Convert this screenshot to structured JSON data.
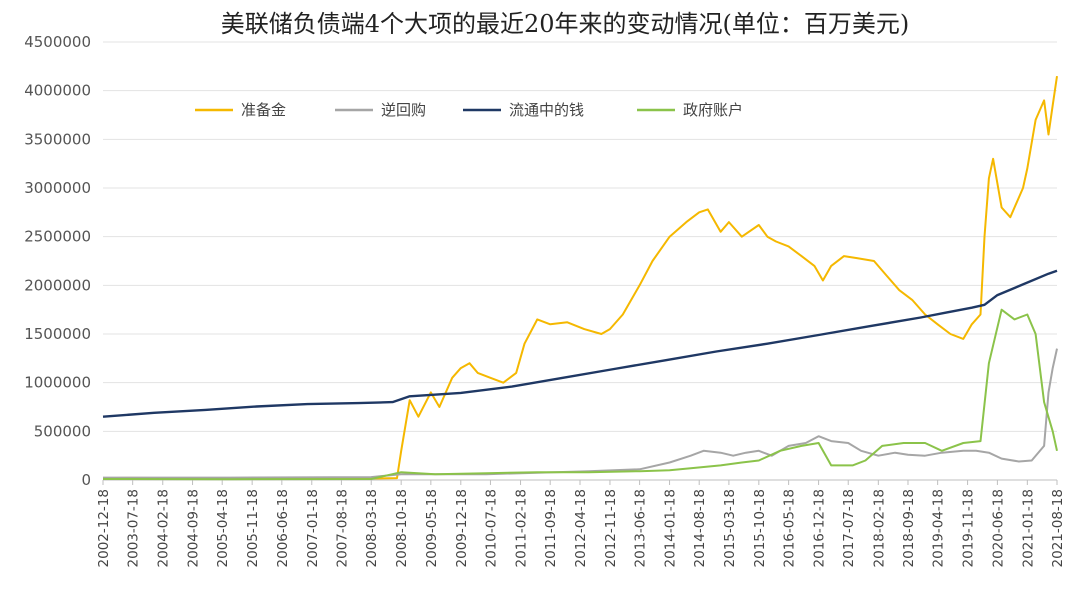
{
  "chart_data": {
    "type": "line",
    "title": "美联储负债端4个大项的最近20年来的变动情况(单位：百万美元)",
    "xlabel": "",
    "ylabel": "",
    "ylim": [
      0,
      4500000
    ],
    "yticks": [
      0,
      500000,
      1000000,
      1500000,
      2000000,
      2500000,
      3000000,
      3500000,
      4000000,
      4500000
    ],
    "ytick_labels": [
      "0",
      "500000",
      "1000000",
      "1500000",
      "2000000",
      "2500000",
      "3000000",
      "3500000",
      "4000000",
      "4500000"
    ],
    "x_start": "2002-12-18",
    "x_end": "2021-08-18",
    "xtick_labels": [
      "2002-12-18",
      "2003-07-18",
      "2004-02-18",
      "2004-09-18",
      "2005-04-18",
      "2005-11-18",
      "2006-06-18",
      "2007-01-18",
      "2007-08-18",
      "2008-03-18",
      "2008-10-18",
      "2009-05-18",
      "2009-12-18",
      "2010-07-18",
      "2011-02-18",
      "2011-09-18",
      "2012-04-18",
      "2012-11-18",
      "2013-06-18",
      "2014-01-18",
      "2014-08-18",
      "2015-03-18",
      "2015-10-18",
      "2016-05-18",
      "2016-12-18",
      "2017-07-18",
      "2018-02-18",
      "2018-09-18",
      "2019-04-18",
      "2019-11-18",
      "2020-06-18",
      "2021-01-18",
      "2021-08-18"
    ],
    "grid": true,
    "legend_position": "top",
    "series": [
      {
        "name": "准备金",
        "color": "#F5B800",
        "points": [
          [
            "2002-12-18",
            20000
          ],
          [
            "2003-06-18",
            22000
          ],
          [
            "2004-06-18",
            20000
          ],
          [
            "2005-06-18",
            18000
          ],
          [
            "2006-06-18",
            15000
          ],
          [
            "2007-06-18",
            15000
          ],
          [
            "2008-03-18",
            15000
          ],
          [
            "2008-09-18",
            20000
          ],
          [
            "2008-10-18",
            300000
          ],
          [
            "2008-12-18",
            820000
          ],
          [
            "2009-02-18",
            650000
          ],
          [
            "2009-05-18",
            900000
          ],
          [
            "2009-07-18",
            750000
          ],
          [
            "2009-10-18",
            1050000
          ],
          [
            "2009-12-18",
            1150000
          ],
          [
            "2010-02-18",
            1200000
          ],
          [
            "2010-04-18",
            1100000
          ],
          [
            "2010-07-18",
            1050000
          ],
          [
            "2010-10-18",
            1000000
          ],
          [
            "2011-01-18",
            1100000
          ],
          [
            "2011-03-18",
            1400000
          ],
          [
            "2011-06-18",
            1650000
          ],
          [
            "2011-09-18",
            1600000
          ],
          [
            "2012-01-18",
            1620000
          ],
          [
            "2012-05-18",
            1550000
          ],
          [
            "2012-09-18",
            1500000
          ],
          [
            "2012-11-18",
            1550000
          ],
          [
            "2013-02-18",
            1700000
          ],
          [
            "2013-06-18",
            2000000
          ],
          [
            "2013-09-18",
            2250000
          ],
          [
            "2014-01-18",
            2500000
          ],
          [
            "2014-05-18",
            2650000
          ],
          [
            "2014-08-18",
            2750000
          ],
          [
            "2014-10-18",
            2780000
          ],
          [
            "2015-01-18",
            2550000
          ],
          [
            "2015-03-18",
            2650000
          ],
          [
            "2015-06-18",
            2500000
          ],
          [
            "2015-10-18",
            2620000
          ],
          [
            "2015-12-18",
            2500000
          ],
          [
            "2016-02-18",
            2450000
          ],
          [
            "2016-05-18",
            2400000
          ],
          [
            "2016-08-18",
            2300000
          ],
          [
            "2016-11-18",
            2200000
          ],
          [
            "2017-01-18",
            2050000
          ],
          [
            "2017-03-18",
            2200000
          ],
          [
            "2017-06-18",
            2300000
          ],
          [
            "2017-09-18",
            2280000
          ],
          [
            "2018-01-18",
            2250000
          ],
          [
            "2018-04-18",
            2100000
          ],
          [
            "2018-07-18",
            1950000
          ],
          [
            "2018-10-18",
            1850000
          ],
          [
            "2019-01-18",
            1700000
          ],
          [
            "2019-04-18",
            1600000
          ],
          [
            "2019-07-18",
            1500000
          ],
          [
            "2019-10-18",
            1450000
          ],
          [
            "2019-12-18",
            1600000
          ],
          [
            "2020-02-18",
            1700000
          ],
          [
            "2020-03-18",
            2500000
          ],
          [
            "2020-04-18",
            3100000
          ],
          [
            "2020-05-18",
            3300000
          ],
          [
            "2020-07-18",
            2800000
          ],
          [
            "2020-09-18",
            2700000
          ],
          [
            "2020-12-18",
            3000000
          ],
          [
            "2021-01-18",
            3200000
          ],
          [
            "2021-03-18",
            3700000
          ],
          [
            "2021-05-18",
            3900000
          ],
          [
            "2021-06-18",
            3550000
          ],
          [
            "2021-07-18",
            3850000
          ],
          [
            "2021-08-18",
            4150000
          ]
        ]
      },
      {
        "name": "逆回购",
        "color": "#A6A6A6",
        "points": [
          [
            "2002-12-18",
            25000
          ],
          [
            "2005-06-18",
            25000
          ],
          [
            "2008-03-18",
            30000
          ],
          [
            "2008-10-18",
            60000
          ],
          [
            "2010-06-18",
            60000
          ],
          [
            "2012-06-18",
            90000
          ],
          [
            "2013-06-18",
            110000
          ],
          [
            "2014-01-18",
            180000
          ],
          [
            "2014-06-18",
            250000
          ],
          [
            "2014-09-18",
            300000
          ],
          [
            "2015-01-18",
            280000
          ],
          [
            "2015-04-18",
            250000
          ],
          [
            "2015-07-18",
            280000
          ],
          [
            "2015-10-18",
            300000
          ],
          [
            "2016-01-18",
            250000
          ],
          [
            "2016-05-18",
            350000
          ],
          [
            "2016-09-18",
            380000
          ],
          [
            "2016-12-18",
            450000
          ],
          [
            "2017-03-18",
            400000
          ],
          [
            "2017-07-18",
            380000
          ],
          [
            "2017-10-18",
            300000
          ],
          [
            "2018-02-18",
            250000
          ],
          [
            "2018-06-18",
            280000
          ],
          [
            "2018-09-18",
            260000
          ],
          [
            "2019-01-18",
            250000
          ],
          [
            "2019-05-18",
            280000
          ],
          [
            "2019-10-18",
            300000
          ],
          [
            "2020-01-18",
            300000
          ],
          [
            "2020-04-18",
            280000
          ],
          [
            "2020-07-18",
            220000
          ],
          [
            "2020-11-18",
            190000
          ],
          [
            "2021-02-18",
            200000
          ],
          [
            "2021-05-18",
            350000
          ],
          [
            "2021-06-18",
            900000
          ],
          [
            "2021-07-18",
            1150000
          ],
          [
            "2021-08-18",
            1350000
          ]
        ]
      },
      {
        "name": "流通中的钱",
        "color": "#1F3864",
        "points": [
          [
            "2002-12-18",
            650000
          ],
          [
            "2003-12-18",
            690000
          ],
          [
            "2004-12-18",
            720000
          ],
          [
            "2005-12-18",
            755000
          ],
          [
            "2006-12-18",
            780000
          ],
          [
            "2007-12-18",
            790000
          ],
          [
            "2008-08-18",
            800000
          ],
          [
            "2008-12-18",
            860000
          ],
          [
            "2009-12-18",
            895000
          ],
          [
            "2010-12-18",
            960000
          ],
          [
            "2011-12-18",
            1050000
          ],
          [
            "2012-12-18",
            1140000
          ],
          [
            "2013-12-18",
            1230000
          ],
          [
            "2014-12-18",
            1320000
          ],
          [
            "2015-12-18",
            1400000
          ],
          [
            "2016-12-18",
            1490000
          ],
          [
            "2017-12-18",
            1580000
          ],
          [
            "2018-12-18",
            1670000
          ],
          [
            "2019-06-18",
            1720000
          ],
          [
            "2019-12-18",
            1770000
          ],
          [
            "2020-03-18",
            1800000
          ],
          [
            "2020-06-18",
            1900000
          ],
          [
            "2020-12-18",
            2010000
          ],
          [
            "2021-06-18",
            2120000
          ],
          [
            "2021-08-18",
            2150000
          ]
        ]
      },
      {
        "name": "政府账户",
        "color": "#8BC34A",
        "points": [
          [
            "2002-12-18",
            10000
          ],
          [
            "2005-06-18",
            8000
          ],
          [
            "2008-03-18",
            10000
          ],
          [
            "2008-10-18",
            80000
          ],
          [
            "2009-06-18",
            60000
          ],
          [
            "2010-06-18",
            70000
          ],
          [
            "2011-06-18",
            80000
          ],
          [
            "2012-06-18",
            80000
          ],
          [
            "2013-06-18",
            90000
          ],
          [
            "2014-01-18",
            100000
          ],
          [
            "2014-06-18",
            120000
          ],
          [
            "2015-01-18",
            150000
          ],
          [
            "2015-06-18",
            180000
          ],
          [
            "2015-10-18",
            200000
          ],
          [
            "2016-03-18",
            300000
          ],
          [
            "2016-08-18",
            350000
          ],
          [
            "2016-12-18",
            380000
          ],
          [
            "2017-03-18",
            150000
          ],
          [
            "2017-08-18",
            150000
          ],
          [
            "2017-11-18",
            200000
          ],
          [
            "2018-03-18",
            350000
          ],
          [
            "2018-08-18",
            380000
          ],
          [
            "2019-01-18",
            380000
          ],
          [
            "2019-05-18",
            300000
          ],
          [
            "2019-10-18",
            380000
          ],
          [
            "2020-02-18",
            400000
          ],
          [
            "2020-04-18",
            1200000
          ],
          [
            "2020-07-18",
            1750000
          ],
          [
            "2020-10-18",
            1650000
          ],
          [
            "2021-01-18",
            1700000
          ],
          [
            "2021-03-18",
            1500000
          ],
          [
            "2021-05-18",
            800000
          ],
          [
            "2021-07-18",
            500000
          ],
          [
            "2021-08-18",
            300000
          ]
        ]
      }
    ]
  }
}
